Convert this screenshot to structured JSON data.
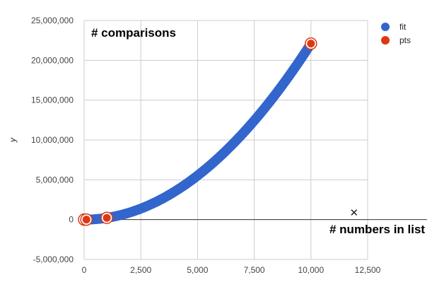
{
  "chart_data": {
    "type": "scatter",
    "ylabel": "y",
    "xlim": [
      0,
      12500
    ],
    "ylim": [
      -5000000,
      25000000
    ],
    "x_ticks": [
      "0",
      "2,500",
      "5,000",
      "7,500",
      "10,000",
      "12,500"
    ],
    "y_ticks": [
      "25,000,000",
      "20,000,000",
      "15,000,000",
      "10,000,000",
      "5,000,000",
      "0",
      "-5,000,000"
    ],
    "x_tick_values": [
      0,
      2500,
      5000,
      7500,
      10000,
      12500
    ],
    "y_tick_values": [
      25000000,
      20000000,
      15000000,
      10000000,
      5000000,
      0,
      -5000000
    ],
    "grid": true,
    "legend_position": "right",
    "annotations": [
      "# comparisons",
      "# numbers in list"
    ],
    "marker_symbol": "✕",
    "marker_value": {
      "x": 11900,
      "y": 500000
    },
    "series": [
      {
        "name": "fit",
        "color": "#3366cc",
        "x_range": [
          0,
          10000
        ],
        "formula": "0.221 * x^2",
        "coefficient": 0.221
      },
      {
        "name": "pts",
        "color": "#dc3912",
        "points": [
          {
            "x": 0,
            "y": 0
          },
          {
            "x": 100,
            "y": 2200
          },
          {
            "x": 1000,
            "y": 220000
          },
          {
            "x": 10000,
            "y": 22100000
          }
        ]
      }
    ]
  }
}
